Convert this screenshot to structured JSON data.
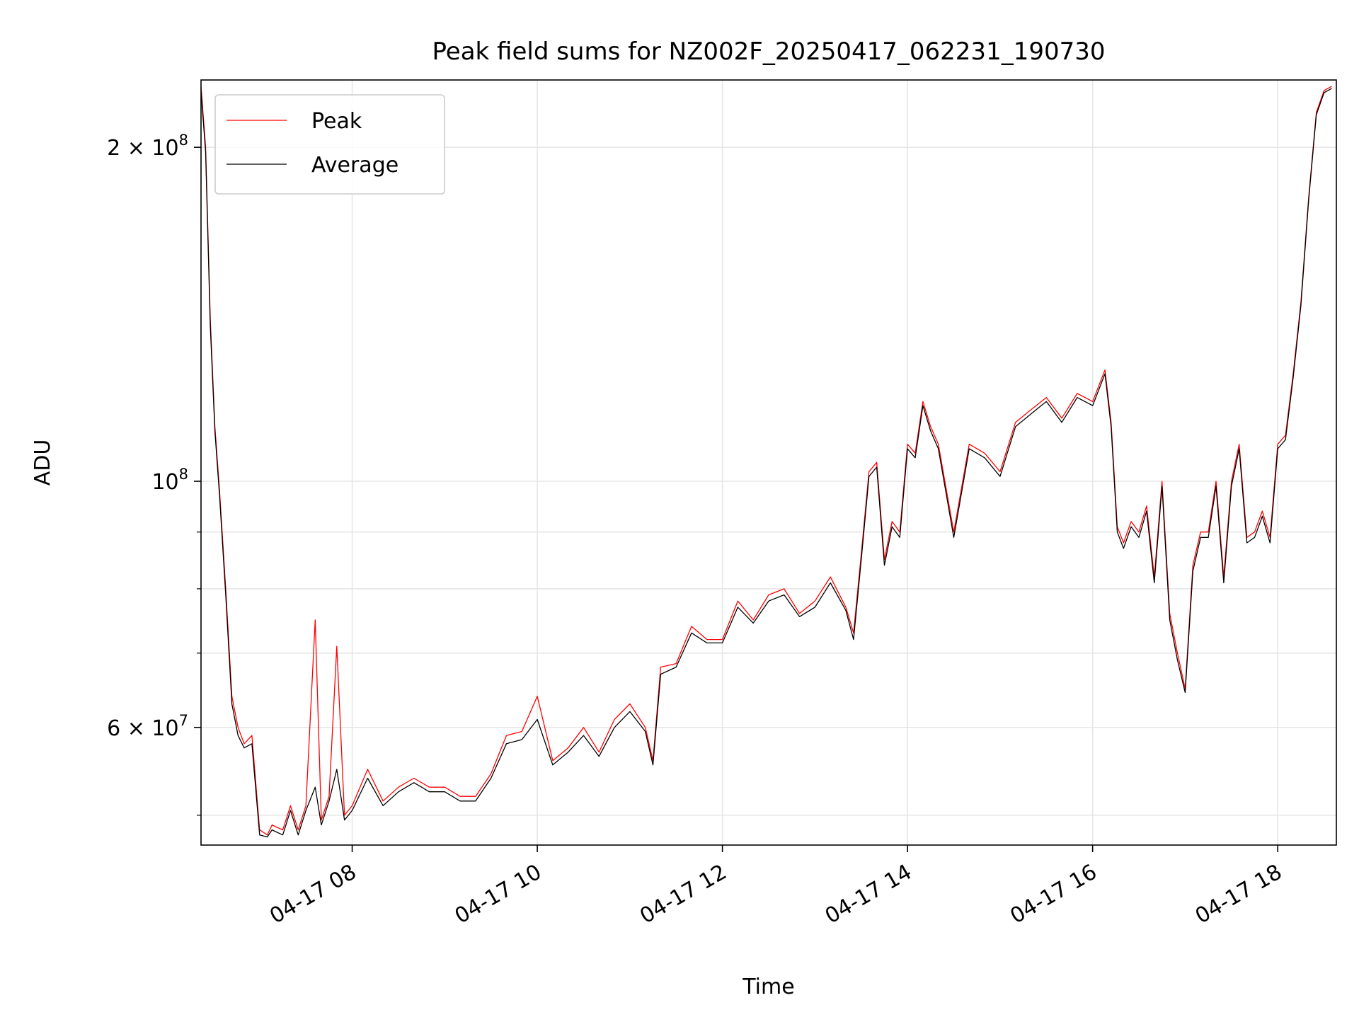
{
  "chart_data": {
    "type": "line",
    "title": "Peak field sums for NZ002F_20250417_062231_190730",
    "xlabel": "Time",
    "ylabel": "ADU",
    "yscale": "log",
    "ylim": [
      47000000,
      230000000
    ],
    "xlim": [
      "2025-04-17 06:22",
      "2025-04-17 18:38"
    ],
    "grid": true,
    "legend_position": "top-left",
    "x_ticks": [
      {
        "label": "04-17 08",
        "value": "2025-04-17 08:00"
      },
      {
        "label": "04-17 10",
        "value": "2025-04-17 10:00"
      },
      {
        "label": "04-17 12",
        "value": "2025-04-17 12:00"
      },
      {
        "label": "04-17 14",
        "value": "2025-04-17 14:00"
      },
      {
        "label": "04-17 16",
        "value": "2025-04-17 16:00"
      },
      {
        "label": "04-17 18",
        "value": "2025-04-17 18:00"
      }
    ],
    "y_ticks": [
      {
        "value": 200000000,
        "mantissa": "2 × 10",
        "exponent": "8"
      },
      {
        "value": 100000000,
        "mantissa": "10",
        "exponent": "8"
      },
      {
        "value": 60000000,
        "mantissa": "6 × 10",
        "exponent": "7"
      }
    ],
    "y_minor_ticks": [
      50000000,
      70000000,
      80000000,
      90000000
    ],
    "series": [
      {
        "name": "Peak",
        "color": "#ff0000",
        "x": [
          "2025-04-17 06:22",
          "2025-04-17 06:25",
          "2025-04-17 06:28",
          "2025-04-17 06:31",
          "2025-04-17 06:34",
          "2025-04-17 06:38",
          "2025-04-17 06:42",
          "2025-04-17 06:46",
          "2025-04-17 06:50",
          "2025-04-17 06:55",
          "2025-04-17 07:00",
          "2025-04-17 07:05",
          "2025-04-17 07:08",
          "2025-04-17 07:15",
          "2025-04-17 07:20",
          "2025-04-17 07:25",
          "2025-04-17 07:30",
          "2025-04-17 07:36",
          "2025-04-17 07:40",
          "2025-04-17 07:45",
          "2025-04-17 07:50",
          "2025-04-17 07:55",
          "2025-04-17 08:00",
          "2025-04-17 08:10",
          "2025-04-17 08:20",
          "2025-04-17 08:30",
          "2025-04-17 08:40",
          "2025-04-17 08:50",
          "2025-04-17 09:00",
          "2025-04-17 09:10",
          "2025-04-17 09:20",
          "2025-04-17 09:30",
          "2025-04-17 09:40",
          "2025-04-17 09:50",
          "2025-04-17 10:00",
          "2025-04-17 10:10",
          "2025-04-17 10:20",
          "2025-04-17 10:30",
          "2025-04-17 10:40",
          "2025-04-17 10:50",
          "2025-04-17 11:00",
          "2025-04-17 11:10",
          "2025-04-17 11:15",
          "2025-04-17 11:20",
          "2025-04-17 11:30",
          "2025-04-17 11:40",
          "2025-04-17 11:50",
          "2025-04-17 12:00",
          "2025-04-17 12:10",
          "2025-04-17 12:20",
          "2025-04-17 12:30",
          "2025-04-17 12:40",
          "2025-04-17 12:50",
          "2025-04-17 13:00",
          "2025-04-17 13:10",
          "2025-04-17 13:20",
          "2025-04-17 13:25",
          "2025-04-17 13:30",
          "2025-04-17 13:35",
          "2025-04-17 13:40",
          "2025-04-17 13:45",
          "2025-04-17 13:50",
          "2025-04-17 13:55",
          "2025-04-17 14:00",
          "2025-04-17 14:05",
          "2025-04-17 14:10",
          "2025-04-17 14:15",
          "2025-04-17 14:20",
          "2025-04-17 14:30",
          "2025-04-17 14:40",
          "2025-04-17 14:50",
          "2025-04-17 15:00",
          "2025-04-17 15:10",
          "2025-04-17 15:20",
          "2025-04-17 15:30",
          "2025-04-17 15:40",
          "2025-04-17 15:50",
          "2025-04-17 16:00",
          "2025-04-17 16:08",
          "2025-04-17 16:12",
          "2025-04-17 16:16",
          "2025-04-17 16:20",
          "2025-04-17 16:25",
          "2025-04-17 16:30",
          "2025-04-17 16:35",
          "2025-04-17 16:40",
          "2025-04-17 16:45",
          "2025-04-17 16:50",
          "2025-04-17 16:55",
          "2025-04-17 17:00",
          "2025-04-17 17:05",
          "2025-04-17 17:10",
          "2025-04-17 17:15",
          "2025-04-17 17:20",
          "2025-04-17 17:25",
          "2025-04-17 17:30",
          "2025-04-17 17:35",
          "2025-04-17 17:40",
          "2025-04-17 17:45",
          "2025-04-17 17:50",
          "2025-04-17 17:55",
          "2025-04-17 18:00",
          "2025-04-17 18:05",
          "2025-04-17 18:10",
          "2025-04-17 18:15",
          "2025-04-17 18:20",
          "2025-04-17 18:25",
          "2025-04-17 18:30",
          "2025-04-17 18:35"
        ],
        "y": [
          227000000,
          200000000,
          140000000,
          112000000,
          98000000,
          80000000,
          64000000,
          60000000,
          58000000,
          59000000,
          48500000,
          48000000,
          49000000,
          48500000,
          51000000,
          48500000,
          51000000,
          75000000,
          49500000,
          52000000,
          71000000,
          50000000,
          51000000,
          55000000,
          51500000,
          53000000,
          54000000,
          53000000,
          53000000,
          52000000,
          52000000,
          54500000,
          59000000,
          59500000,
          64000000,
          56000000,
          57500000,
          60000000,
          57000000,
          61000000,
          63000000,
          60000000,
          56000000,
          68000000,
          68500000,
          74000000,
          72000000,
          72000000,
          78000000,
          75000000,
          79000000,
          80000000,
          76000000,
          78000000,
          82000000,
          77000000,
          73000000,
          86000000,
          102000000,
          104000000,
          85000000,
          92000000,
          90000000,
          108000000,
          106000000,
          118000000,
          112000000,
          108000000,
          90000000,
          108000000,
          106000000,
          102000000,
          113000000,
          116000000,
          119000000,
          114000000,
          120000000,
          118000000,
          126000000,
          113000000,
          91000000,
          88000000,
          92000000,
          90000000,
          95000000,
          82000000,
          100000000,
          76000000,
          70000000,
          65000000,
          84000000,
          90000000,
          90000000,
          100000000,
          82000000,
          100000000,
          108000000,
          89000000,
          90000000,
          94000000,
          89000000,
          108000000,
          110000000,
          125000000,
          145000000,
          180000000,
          215000000,
          225000000,
          227000000
        ]
      },
      {
        "name": "Average",
        "color": "#000000",
        "x": [
          "2025-04-17 06:22",
          "2025-04-17 06:25",
          "2025-04-17 06:28",
          "2025-04-17 06:31",
          "2025-04-17 06:34",
          "2025-04-17 06:38",
          "2025-04-17 06:42",
          "2025-04-17 06:46",
          "2025-04-17 06:50",
          "2025-04-17 06:55",
          "2025-04-17 07:00",
          "2025-04-17 07:05",
          "2025-04-17 07:08",
          "2025-04-17 07:15",
          "2025-04-17 07:20",
          "2025-04-17 07:25",
          "2025-04-17 07:30",
          "2025-04-17 07:36",
          "2025-04-17 07:40",
          "2025-04-17 07:45",
          "2025-04-17 07:50",
          "2025-04-17 07:55",
          "2025-04-17 08:00",
          "2025-04-17 08:10",
          "2025-04-17 08:20",
          "2025-04-17 08:30",
          "2025-04-17 08:40",
          "2025-04-17 08:50",
          "2025-04-17 09:00",
          "2025-04-17 09:10",
          "2025-04-17 09:20",
          "2025-04-17 09:30",
          "2025-04-17 09:40",
          "2025-04-17 09:50",
          "2025-04-17 10:00",
          "2025-04-17 10:10",
          "2025-04-17 10:20",
          "2025-04-17 10:30",
          "2025-04-17 10:40",
          "2025-04-17 10:50",
          "2025-04-17 11:00",
          "2025-04-17 11:10",
          "2025-04-17 11:15",
          "2025-04-17 11:20",
          "2025-04-17 11:30",
          "2025-04-17 11:40",
          "2025-04-17 11:50",
          "2025-04-17 12:00",
          "2025-04-17 12:10",
          "2025-04-17 12:20",
          "2025-04-17 12:30",
          "2025-04-17 12:40",
          "2025-04-17 12:50",
          "2025-04-17 13:00",
          "2025-04-17 13:10",
          "2025-04-17 13:20",
          "2025-04-17 13:25",
          "2025-04-17 13:30",
          "2025-04-17 13:35",
          "2025-04-17 13:40",
          "2025-04-17 13:45",
          "2025-04-17 13:50",
          "2025-04-17 13:55",
          "2025-04-17 14:00",
          "2025-04-17 14:05",
          "2025-04-17 14:10",
          "2025-04-17 14:15",
          "2025-04-17 14:20",
          "2025-04-17 14:30",
          "2025-04-17 14:40",
          "2025-04-17 14:50",
          "2025-04-17 15:00",
          "2025-04-17 15:10",
          "2025-04-17 15:20",
          "2025-04-17 15:30",
          "2025-04-17 15:40",
          "2025-04-17 15:50",
          "2025-04-17 16:00",
          "2025-04-17 16:08",
          "2025-04-17 16:12",
          "2025-04-17 16:16",
          "2025-04-17 16:20",
          "2025-04-17 16:25",
          "2025-04-17 16:30",
          "2025-04-17 16:35",
          "2025-04-17 16:40",
          "2025-04-17 16:45",
          "2025-04-17 16:50",
          "2025-04-17 16:55",
          "2025-04-17 17:00",
          "2025-04-17 17:05",
          "2025-04-17 17:10",
          "2025-04-17 17:15",
          "2025-04-17 17:20",
          "2025-04-17 17:25",
          "2025-04-17 17:30",
          "2025-04-17 17:35",
          "2025-04-17 17:40",
          "2025-04-17 17:45",
          "2025-04-17 17:50",
          "2025-04-17 17:55",
          "2025-04-17 18:00",
          "2025-04-17 18:05",
          "2025-04-17 18:10",
          "2025-04-17 18:15",
          "2025-04-17 18:20",
          "2025-04-17 18:25",
          "2025-04-17 18:30",
          "2025-04-17 18:35"
        ],
        "y": [
          225000000,
          198000000,
          138000000,
          111000000,
          97000000,
          79000000,
          63000000,
          59000000,
          57500000,
          58000000,
          48000000,
          47800000,
          48500000,
          48000000,
          50500000,
          48000000,
          50500000,
          53000000,
          49000000,
          51500000,
          55000000,
          49500000,
          50500000,
          54000000,
          51000000,
          52500000,
          53500000,
          52500000,
          52500000,
          51500000,
          51500000,
          54000000,
          58000000,
          58500000,
          61000000,
          55500000,
          57000000,
          59000000,
          56500000,
          60000000,
          62000000,
          59500000,
          55500000,
          67000000,
          68000000,
          73000000,
          71500000,
          71500000,
          77000000,
          74500000,
          78000000,
          79000000,
          75500000,
          77000000,
          81000000,
          76500000,
          72000000,
          85000000,
          101000000,
          103000000,
          84000000,
          91000000,
          89000000,
          107000000,
          105000000,
          117000000,
          111000000,
          107000000,
          89000000,
          107000000,
          105000000,
          101000000,
          112000000,
          115000000,
          118000000,
          113000000,
          119000000,
          117000000,
          125000000,
          112000000,
          90000000,
          87000000,
          91000000,
          89000000,
          94000000,
          81000000,
          99000000,
          75000000,
          69000000,
          64500000,
          83000000,
          89000000,
          89000000,
          99000000,
          81000000,
          99000000,
          107000000,
          88000000,
          89000000,
          93000000,
          88000000,
          107000000,
          109000000,
          124000000,
          144000000,
          179000000,
          214000000,
          224000000,
          226000000
        ]
      }
    ]
  }
}
